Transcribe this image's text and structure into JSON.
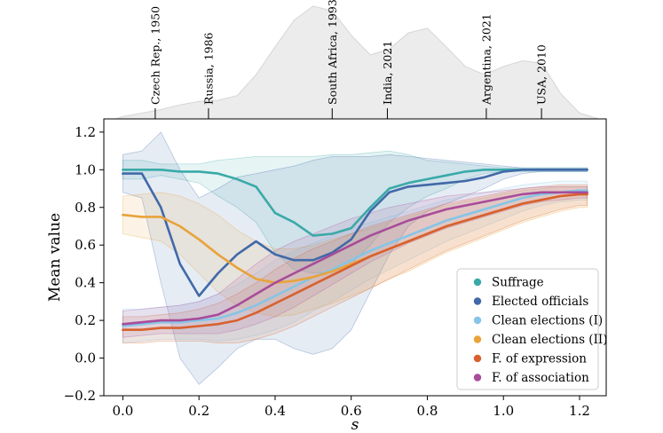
{
  "chart_data": {
    "type": "line",
    "title": "",
    "xlabel": "s",
    "ylabel": "Mean value",
    "xlim": [
      -0.05,
      1.27
    ],
    "ylim": [
      -0.2,
      1.27
    ],
    "xticks": [
      "0.0",
      "0.2",
      "0.4",
      "0.6",
      "0.8",
      "1.0",
      "1.2"
    ],
    "xtick_values": [
      0.0,
      0.2,
      0.4,
      0.6,
      0.8,
      1.0,
      1.2
    ],
    "yticks": [
      "−0.2",
      "0.0",
      "0.2",
      "0.4",
      "0.6",
      "0.8",
      "1.0",
      "1.2"
    ],
    "ytick_values": [
      -0.2,
      0.0,
      0.2,
      0.4,
      0.6,
      0.8,
      1.0,
      1.2
    ],
    "top_markers": [
      {
        "label": "Czech Rep., 1950",
        "s": 0.085
      },
      {
        "label": "Russia, 1986",
        "s": 0.225
      },
      {
        "label": "South Africa, 1993",
        "s": 0.55
      },
      {
        "label": "India, 2021",
        "s": 0.695
      },
      {
        "label": "Argentina, 2021",
        "s": 0.955
      },
      {
        "label": "USA, 2010",
        "s": 1.1
      }
    ],
    "density": {
      "s": [
        -0.02,
        0.0,
        0.05,
        0.1,
        0.15,
        0.2,
        0.25,
        0.3,
        0.35,
        0.4,
        0.45,
        0.5,
        0.55,
        0.6,
        0.65,
        0.7,
        0.75,
        0.8,
        0.85,
        0.9,
        0.95,
        1.0,
        1.05,
        1.1,
        1.15,
        1.2,
        1.25
      ],
      "value": [
        0.0,
        0.02,
        0.05,
        0.08,
        0.12,
        0.15,
        0.16,
        0.2,
        0.38,
        0.62,
        0.85,
        0.97,
        0.93,
        0.72,
        0.55,
        0.6,
        0.74,
        0.78,
        0.62,
        0.45,
        0.38,
        0.45,
        0.5,
        0.48,
        0.22,
        0.05,
        0.0
      ]
    },
    "x": [
      0.0,
      0.05,
      0.1,
      0.15,
      0.2,
      0.25,
      0.3,
      0.35,
      0.4,
      0.45,
      0.5,
      0.55,
      0.6,
      0.65,
      0.7,
      0.75,
      0.8,
      0.85,
      0.9,
      0.95,
      1.0,
      1.05,
      1.1,
      1.15,
      1.2,
      1.22
    ],
    "series": [
      {
        "name": "Suffrage",
        "color": "#3aaaa8",
        "values": [
          1.0,
          1.0,
          1.0,
          0.99,
          0.99,
          0.98,
          0.95,
          0.91,
          0.77,
          0.72,
          0.65,
          0.66,
          0.69,
          0.8,
          0.9,
          0.93,
          0.95,
          0.97,
          0.99,
          1.0,
          1.0,
          1.0,
          1.0,
          1.0,
          1.0,
          1.0
        ],
        "upper": [
          1.05,
          1.05,
          1.03,
          1.03,
          1.03,
          1.05,
          1.06,
          1.07,
          1.07,
          1.07,
          1.07,
          1.08,
          1.08,
          1.09,
          1.1,
          1.08,
          1.05,
          1.04,
          1.03,
          1.02,
          1.01,
          1.01,
          1.01,
          1.01,
          1.01,
          1.01
        ],
        "lower": [
          0.95,
          0.95,
          0.97,
          0.95,
          0.93,
          0.86,
          0.8,
          0.72,
          0.56,
          0.47,
          0.45,
          0.46,
          0.5,
          0.6,
          0.72,
          0.8,
          0.86,
          0.9,
          0.95,
          0.98,
          0.99,
          0.99,
          0.99,
          0.99,
          0.99,
          0.99
        ]
      },
      {
        "name": "Elected officials",
        "color": "#4169a8",
        "values": [
          0.98,
          0.98,
          0.8,
          0.5,
          0.33,
          0.45,
          0.55,
          0.62,
          0.55,
          0.52,
          0.52,
          0.56,
          0.63,
          0.78,
          0.88,
          0.91,
          0.92,
          0.93,
          0.94,
          0.96,
          0.99,
          1.0,
          1.0,
          1.0,
          1.0,
          1.0
        ],
        "upper": [
          1.08,
          1.1,
          1.2,
          1.0,
          0.85,
          0.9,
          0.96,
          0.98,
          1.0,
          1.02,
          1.05,
          1.07,
          1.07,
          1.07,
          1.08,
          1.07,
          1.06,
          1.05,
          1.04,
          1.03,
          1.02,
          1.01,
          1.01,
          1.01,
          1.01,
          1.01
        ],
        "lower": [
          0.88,
          0.85,
          0.4,
          0.0,
          -0.14,
          -0.05,
          0.05,
          0.1,
          0.1,
          0.05,
          0.02,
          0.05,
          0.15,
          0.35,
          0.55,
          0.7,
          0.78,
          0.82,
          0.86,
          0.9,
          0.95,
          0.98,
          0.99,
          0.99,
          0.99,
          0.99
        ]
      },
      {
        "name": "Clean elections (I)",
        "color": "#85c5e5",
        "values": [
          0.17,
          0.18,
          0.19,
          0.19,
          0.2,
          0.21,
          0.24,
          0.28,
          0.33,
          0.38,
          0.43,
          0.47,
          0.52,
          0.57,
          0.61,
          0.65,
          0.69,
          0.73,
          0.76,
          0.79,
          0.82,
          0.85,
          0.87,
          0.88,
          0.89,
          0.89
        ],
        "upper": [
          0.26,
          0.26,
          0.27,
          0.28,
          0.3,
          0.34,
          0.39,
          0.45,
          0.52,
          0.57,
          0.61,
          0.65,
          0.69,
          0.72,
          0.75,
          0.78,
          0.81,
          0.84,
          0.86,
          0.88,
          0.9,
          0.92,
          0.93,
          0.94,
          0.94,
          0.94
        ],
        "lower": [
          0.08,
          0.09,
          0.1,
          0.1,
          0.1,
          0.09,
          0.1,
          0.12,
          0.15,
          0.19,
          0.25,
          0.3,
          0.36,
          0.42,
          0.47,
          0.52,
          0.57,
          0.62,
          0.66,
          0.7,
          0.74,
          0.78,
          0.81,
          0.83,
          0.84,
          0.84
        ]
      },
      {
        "name": "Clean elections (II)",
        "color": "#e8a33a",
        "values": [
          0.76,
          0.75,
          0.75,
          0.7,
          0.63,
          0.55,
          0.48,
          0.42,
          0.4,
          0.41,
          0.43,
          0.46,
          0.5,
          0.54,
          0.58,
          0.62,
          0.66,
          0.7,
          0.73,
          0.76,
          0.79,
          0.82,
          0.84,
          0.86,
          0.87,
          0.87
        ],
        "upper": [
          0.86,
          0.87,
          0.88,
          0.86,
          0.82,
          0.76,
          0.68,
          0.62,
          0.58,
          0.58,
          0.6,
          0.63,
          0.66,
          0.69,
          0.72,
          0.75,
          0.78,
          0.81,
          0.83,
          0.85,
          0.87,
          0.89,
          0.9,
          0.91,
          0.91,
          0.91
        ],
        "lower": [
          0.66,
          0.64,
          0.62,
          0.55,
          0.45,
          0.35,
          0.28,
          0.24,
          0.22,
          0.23,
          0.26,
          0.29,
          0.33,
          0.37,
          0.42,
          0.46,
          0.51,
          0.56,
          0.6,
          0.64,
          0.68,
          0.72,
          0.75,
          0.78,
          0.8,
          0.8
        ]
      },
      {
        "name": "F. of expression",
        "color": "#d8612e",
        "values": [
          0.15,
          0.15,
          0.16,
          0.16,
          0.17,
          0.18,
          0.2,
          0.24,
          0.29,
          0.34,
          0.39,
          0.44,
          0.49,
          0.54,
          0.58,
          0.62,
          0.66,
          0.7,
          0.73,
          0.76,
          0.79,
          0.82,
          0.84,
          0.86,
          0.87,
          0.87
        ],
        "upper": [
          0.22,
          0.22,
          0.23,
          0.24,
          0.26,
          0.29,
          0.34,
          0.4,
          0.47,
          0.53,
          0.58,
          0.62,
          0.66,
          0.7,
          0.73,
          0.76,
          0.79,
          0.82,
          0.84,
          0.86,
          0.88,
          0.9,
          0.91,
          0.92,
          0.92,
          0.92
        ],
        "lower": [
          0.08,
          0.08,
          0.09,
          0.09,
          0.09,
          0.08,
          0.08,
          0.1,
          0.13,
          0.17,
          0.22,
          0.27,
          0.32,
          0.37,
          0.42,
          0.47,
          0.52,
          0.57,
          0.61,
          0.65,
          0.69,
          0.73,
          0.76,
          0.79,
          0.81,
          0.81
        ]
      },
      {
        "name": "F. of association",
        "color": "#a84c9a",
        "values": [
          0.18,
          0.19,
          0.2,
          0.2,
          0.21,
          0.23,
          0.28,
          0.34,
          0.4,
          0.45,
          0.5,
          0.55,
          0.6,
          0.65,
          0.69,
          0.73,
          0.76,
          0.79,
          0.81,
          0.83,
          0.85,
          0.87,
          0.88,
          0.88,
          0.88,
          0.88
        ],
        "upper": [
          0.25,
          0.26,
          0.27,
          0.28,
          0.3,
          0.34,
          0.42,
          0.5,
          0.57,
          0.62,
          0.66,
          0.7,
          0.74,
          0.77,
          0.8,
          0.82,
          0.84,
          0.86,
          0.87,
          0.88,
          0.89,
          0.9,
          0.91,
          0.91,
          0.91,
          0.91
        ],
        "lower": [
          0.11,
          0.12,
          0.13,
          0.13,
          0.13,
          0.13,
          0.15,
          0.18,
          0.22,
          0.27,
          0.33,
          0.39,
          0.45,
          0.51,
          0.56,
          0.61,
          0.65,
          0.69,
          0.72,
          0.75,
          0.78,
          0.81,
          0.83,
          0.84,
          0.85,
          0.85
        ]
      }
    ],
    "legend": [
      "Suffrage",
      "Elected officials",
      "Clean elections (I)",
      "Clean elections (II)",
      "F. of expression",
      "F. of association"
    ],
    "legend_position": "lower-right",
    "grid": false
  }
}
